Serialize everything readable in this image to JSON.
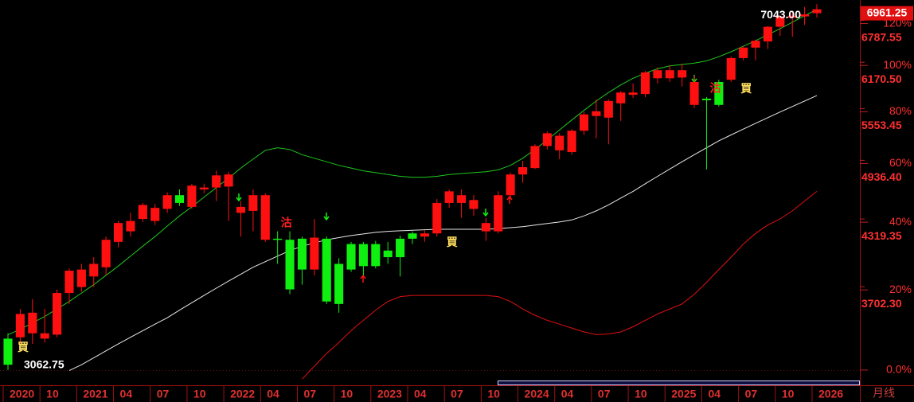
{
  "chart_data": {
    "type": "candlestick",
    "period": "月线",
    "categories": [
      "2020",
      null,
      null,
      "10",
      null,
      null,
      "2021",
      null,
      null,
      "04",
      null,
      null,
      "07",
      null,
      null,
      "10",
      null,
      null,
      "2022",
      null,
      null,
      "04",
      null,
      null,
      "07",
      null,
      null,
      "10",
      null,
      null,
      "2023",
      null,
      null,
      "04",
      null,
      null,
      "07",
      null,
      null,
      "10",
      null,
      null,
      "2024",
      null,
      null,
      "04",
      null,
      null,
      "07",
      null,
      null,
      "10",
      null,
      null,
      "2025",
      null,
      null,
      "04",
      null,
      null,
      "07",
      null,
      null,
      "10",
      null,
      null,
      "2026"
    ],
    "open": [
      3290,
      3300,
      3330,
      3290,
      3320,
      3650,
      3700,
      3790,
      3870,
      4100,
      4200,
      4320,
      4300,
      4420,
      4560,
      4440,
      4620,
      4640,
      4650,
      4380,
      4400,
      4120,
      4130,
      4120,
      4130,
      3850,
      4130,
      3900,
      4080,
      4080,
      4080,
      4020,
      4130,
      4180,
      4150,
      4180,
      4480,
      4480,
      4420,
      4200,
      4200,
      4560,
      4780,
      4850,
      5100,
      5050,
      5030,
      5280,
      5460,
      5440,
      5620,
      5730,
      5740,
      5950,
      5950,
      5960,
      5600,
      5680,
      5900,
      5930,
      6230,
      6380,
      6470,
      6690,
      6830,
      6850,
      6900
    ],
    "high": [
      3330,
      3520,
      3600,
      3520,
      3680,
      3860,
      3900,
      3960,
      4150,
      4300,
      4380,
      4480,
      4470,
      4590,
      4620,
      4680,
      4680,
      4820,
      4810,
      4500,
      4620,
      4580,
      4200,
      4200,
      4150,
      4320,
      4150,
      3950,
      4100,
      4100,
      4110,
      4100,
      4160,
      4200,
      4210,
      4520,
      4620,
      4620,
      4560,
      4330,
      4600,
      4800,
      4930,
      5120,
      5270,
      5250,
      5300,
      5510,
      5670,
      5670,
      5780,
      5880,
      6050,
      6100,
      6130,
      6150,
      5990,
      5700,
      5930,
      6250,
      6400,
      6500,
      6700,
      6870,
      6920,
      7000,
      7043
    ],
    "low": [
      3062.75,
      3200,
      3250,
      3260,
      3300,
      3560,
      3660,
      3700,
      3800,
      4050,
      4150,
      4290,
      4260,
      4380,
      4450,
      4420,
      4580,
      4500,
      4300,
      4150,
      4200,
      4100,
      3900,
      3640,
      3720,
      3800,
      3560,
      3490,
      3830,
      3800,
      3860,
      3900,
      3790,
      4080,
      4100,
      4150,
      4430,
      4330,
      4350,
      4110,
      4180,
      4540,
      4690,
      4840,
      5060,
      4950,
      5000,
      5230,
      5190,
      5120,
      5400,
      5690,
      5700,
      5880,
      5900,
      5840,
      5560,
      4835,
      5580,
      5900,
      6200,
      6200,
      6360,
      6550,
      6540,
      6720,
      6830
    ],
    "close": [
      3100,
      3480,
      3490,
      3330,
      3650,
      3840,
      3850,
      3900,
      4120,
      4280,
      4300,
      4460,
      4430,
      4560,
      4480,
      4660,
      4640,
      4770,
      4780,
      4440,
      4560,
      4560,
      4120,
      3680,
      3850,
      4140,
      3580,
      3560,
      3850,
      3880,
      3880,
      3960,
      3960,
      4130,
      4180,
      4480,
      4600,
      4560,
      4510,
      4280,
      4560,
      4780,
      4860,
      5100,
      5250,
      5220,
      5280,
      5480,
      5520,
      5650,
      5760,
      5760,
      6030,
      6060,
      6060,
      6060,
      5900,
      5660,
      5600,
      6230,
      6380,
      6480,
      6690,
      6850,
      6860,
      6880,
      6961.25
    ],
    "up_color": "#ff1010",
    "down_color": "#10f010",
    "max_label": "7043.00",
    "lines": [
      {
        "color": "#1ec81e",
        "values": [
          3320,
          3360,
          3410,
          3460,
          3520,
          3580,
          3650,
          3720,
          3800,
          3880,
          3970,
          4060,
          4150,
          4250,
          4350,
          4440,
          4540,
          4640,
          4740,
          4850,
          4950,
          5050,
          5080,
          5060,
          5000,
          4960,
          4920,
          4880,
          4850,
          4820,
          4800,
          4780,
          4760,
          4750,
          4750,
          4760,
          4780,
          4790,
          4800,
          4810,
          4830,
          4880,
          4960,
          5060,
          5170,
          5290,
          5410,
          5530,
          5650,
          5760,
          5860,
          5950,
          6020,
          6080,
          6120,
          6140,
          6160,
          6190,
          6250,
          6320,
          6400,
          6480,
          6570,
          6660,
          6760,
          6860,
          6960
        ]
      },
      {
        "color": "#e8e8e8",
        "values": [
          null,
          null,
          null,
          null,
          null,
          3060,
          3100,
          3150,
          3200,
          3250,
          3300,
          3350,
          3400,
          3450,
          3510,
          3570,
          3630,
          3690,
          3750,
          3810,
          3870,
          3920,
          3970,
          4020,
          4060,
          4090,
          4120,
          4140,
          4160,
          4175,
          4190,
          4200,
          4205,
          4210,
          4215,
          4220,
          4220,
          4220,
          4220,
          4220,
          4225,
          4235,
          4245,
          4260,
          4275,
          4290,
          4310,
          4350,
          4400,
          4460,
          4530,
          4600,
          4680,
          4760,
          4840,
          4920,
          5000,
          5080,
          5160,
          5230,
          5300,
          5370,
          5440,
          5510,
          5580,
          5650,
          5720
        ]
      },
      {
        "color": "#e01010",
        "values": [
          null,
          null,
          null,
          null,
          null,
          null,
          null,
          null,
          null,
          null,
          null,
          null,
          null,
          null,
          null,
          null,
          null,
          null,
          null,
          null,
          null,
          null,
          null,
          null,
          3000,
          3090,
          3180,
          3260,
          3350,
          3430,
          3510,
          3580,
          3620,
          3630,
          3630,
          3630,
          3630,
          3630,
          3630,
          3630,
          3620,
          3580,
          3520,
          3470,
          3430,
          3400,
          3370,
          3340,
          3320,
          3325,
          3340,
          3380,
          3430,
          3480,
          3520,
          3560,
          3640,
          3740,
          3850,
          3960,
          4080,
          4180,
          4260,
          4320,
          4400,
          4500,
          4600
        ]
      }
    ],
    "buy_signals": [
      {
        "label": "買",
        "index": 0
      },
      {
        "label": "買",
        "index": 35
      },
      {
        "label": "買",
        "index": 59
      }
    ],
    "sell_signals": [
      {
        "label": "沽",
        "index": 22
      },
      {
        "label": "沽",
        "index": 57
      }
    ],
    "log_scale": true,
    "ylim": [
      2980,
      7110
    ],
    "yticks": [
      {
        "value": 3702.3,
        "label": "3702.30"
      },
      4319.35,
      {
        "value": 4936.4,
        "label": "4936.40"
      },
      5553.45,
      {
        "value": 6170.5,
        "label": "6170.50"
      },
      6787.55
    ],
    "y2lim": [
      -2.7,
      132.1
    ],
    "y2ticks": [
      {
        "value": 0,
        "label": "0.0%"
      },
      {
        "value": 20,
        "label": "20%"
      },
      {
        "value": 40,
        "label": "40%"
      },
      {
        "value": 60,
        "label": "60%"
      },
      {
        "value": 80,
        "label": "80%"
      },
      {
        "value": 100,
        "label": "100%"
      },
      {
        "value": 120,
        "label": "120%"
      }
    ]
  }
}
